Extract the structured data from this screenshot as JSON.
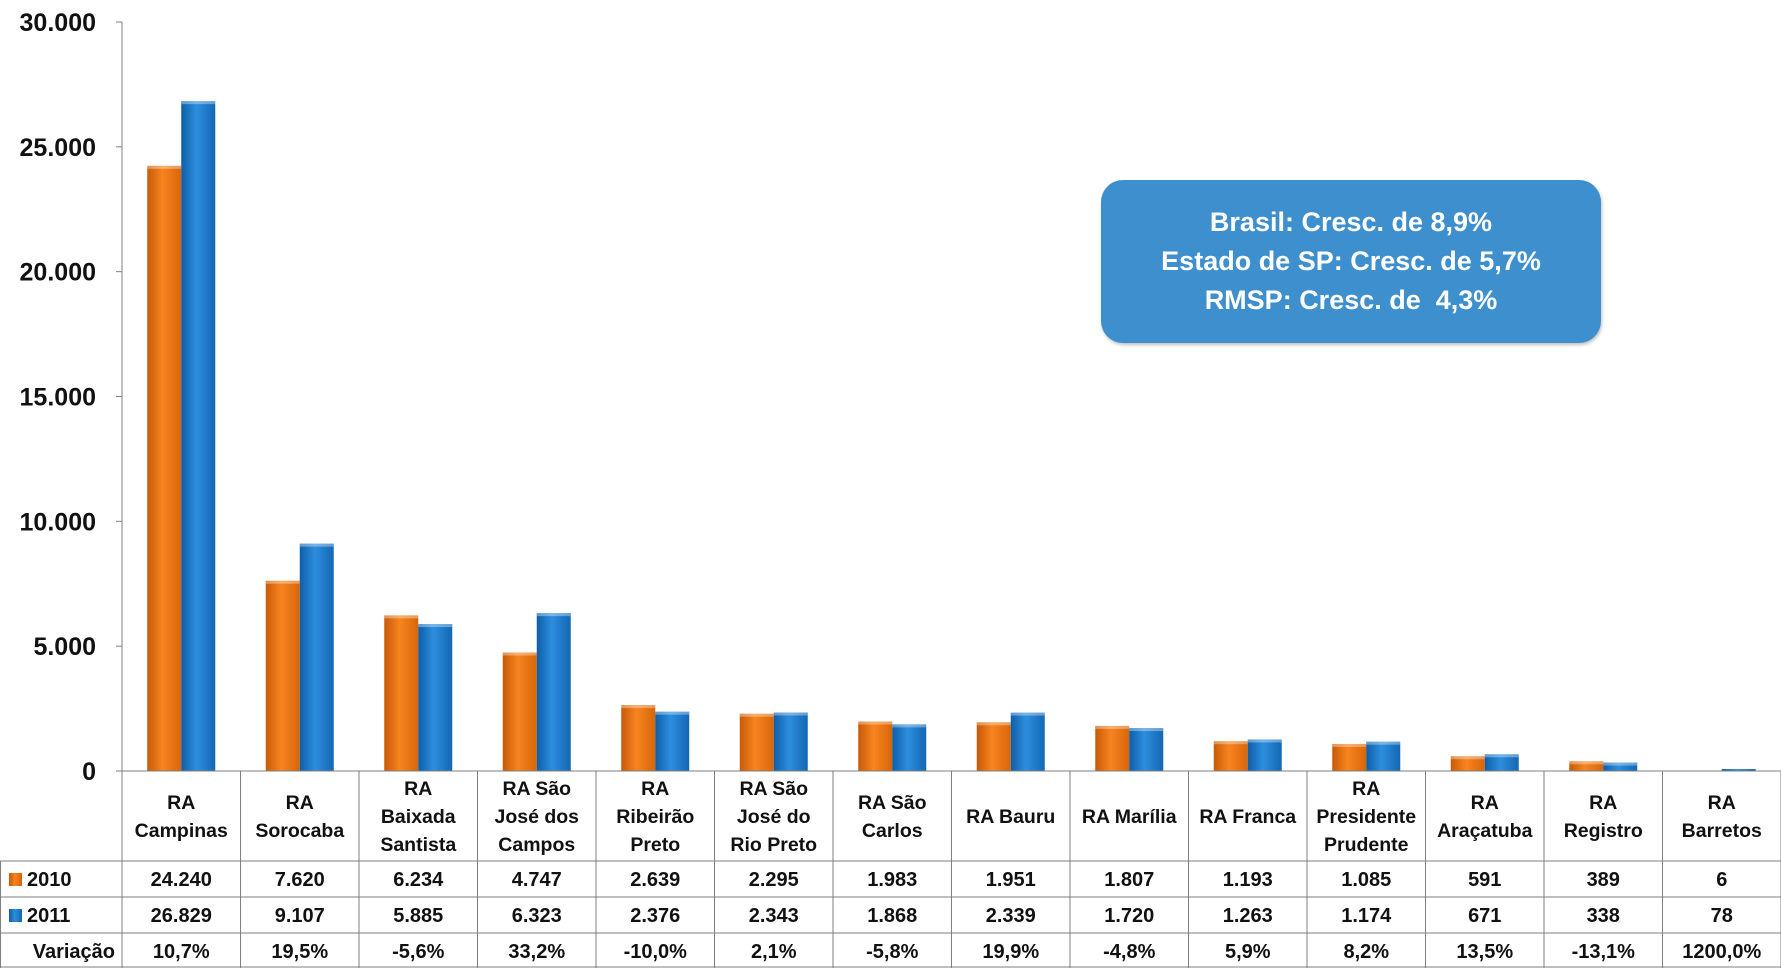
{
  "callout": {
    "line1": "Brasil: Cresc. de 8,9%",
    "line2": "Estado de SP: Cresc. de 5,7%",
    "line3": "RMSP: Cresc. de  4,3%"
  },
  "chart_data": {
    "type": "bar",
    "title": "",
    "xlabel": "",
    "ylabel": "",
    "ylim": [
      0,
      30000
    ],
    "yticks": [
      0,
      5000,
      10000,
      15000,
      20000,
      25000,
      30000
    ],
    "ytick_labels": [
      "0",
      "5.000",
      "10.000",
      "15.000",
      "20.000",
      "25.000",
      "30.000"
    ],
    "grid": false,
    "legend": "data-table",
    "categories": [
      [
        "RA",
        "Campinas"
      ],
      [
        "RA",
        "Sorocaba"
      ],
      [
        "RA",
        "Baixada",
        "Santista"
      ],
      [
        "RA São",
        "José dos",
        "Campos"
      ],
      [
        "RA",
        "Ribeirão",
        "Preto"
      ],
      [
        "RA São",
        "José do",
        "Rio Preto"
      ],
      [
        "RA São",
        "Carlos"
      ],
      [
        "RA Bauru"
      ],
      [
        "RA Marília"
      ],
      [
        "RA Franca"
      ],
      [
        "RA",
        "Presidente",
        "Prudente"
      ],
      [
        "RA",
        "Araçatuba"
      ],
      [
        "RA",
        "Registro"
      ],
      [
        "RA",
        "Barretos"
      ]
    ],
    "series": [
      {
        "name": "2010",
        "color": "#ed7515",
        "values": [
          24240,
          7620,
          6234,
          4747,
          2639,
          2295,
          1983,
          1951,
          1807,
          1193,
          1085,
          591,
          389,
          6
        ],
        "labels": [
          "24.240",
          "7.620",
          "6.234",
          "4.747",
          "2.639",
          "2.295",
          "1.983",
          "1.951",
          "1.807",
          "1.193",
          "1.085",
          "591",
          "389",
          "6"
        ]
      },
      {
        "name": "2011",
        "color": "#1a7acb",
        "values": [
          26829,
          9107,
          5885,
          6323,
          2376,
          2343,
          1868,
          2339,
          1720,
          1263,
          1174,
          671,
          338,
          78
        ],
        "labels": [
          "26.829",
          "9.107",
          "5.885",
          "6.323",
          "2.376",
          "2.343",
          "1.868",
          "2.339",
          "1.720",
          "1.263",
          "1.174",
          "671",
          "338",
          "78"
        ]
      }
    ],
    "variation": {
      "name": "Variação",
      "labels": [
        "10,7%",
        "19,5%",
        "-5,6%",
        "33,2%",
        "-10,0%",
        "2,1%",
        "-5,8%",
        "19,9%",
        "-4,8%",
        "5,9%",
        "8,2%",
        "13,5%",
        "-13,1%",
        "1200,0%"
      ]
    }
  }
}
